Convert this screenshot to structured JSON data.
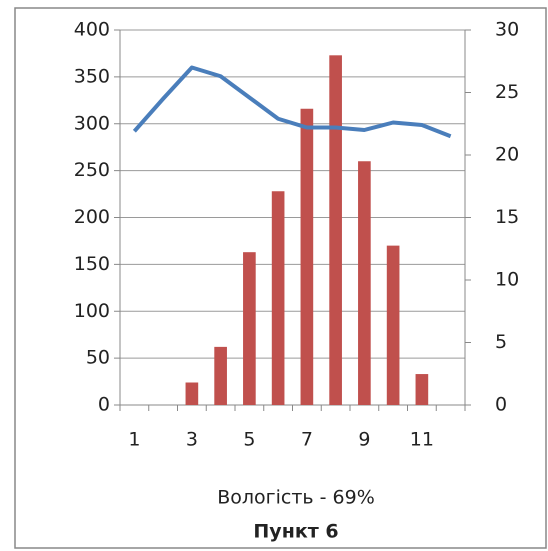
{
  "chart_data": {
    "type": "bar_line",
    "title": "Пункт 6",
    "x_label": "Вологість - 69%",
    "categories": [
      "1",
      null,
      "3",
      null,
      "5",
      null,
      "7",
      null,
      "9",
      null,
      "11",
      null
    ],
    "series": [
      {
        "type": "bar",
        "color": "#c0504d",
        "values": [
          0,
          0,
          24,
          62,
          163,
          228,
          316,
          373,
          260,
          170,
          33,
          0
        ]
      },
      {
        "type": "line",
        "axis": "y2",
        "color": "#4a7ebb",
        "values": [
          21.9,
          24.5,
          27.0,
          26.3,
          24.6,
          22.9,
          22.2,
          22.2,
          22.0,
          22.6,
          22.4,
          21.5
        ]
      }
    ],
    "ylim": [
      0,
      400
    ],
    "yticks": [
      0,
      50,
      100,
      150,
      200,
      250,
      300,
      350,
      400
    ],
    "y2lim": [
      0,
      30
    ],
    "y2ticks": [
      0,
      5,
      10,
      15,
      20,
      25,
      30
    ],
    "grid": true
  }
}
